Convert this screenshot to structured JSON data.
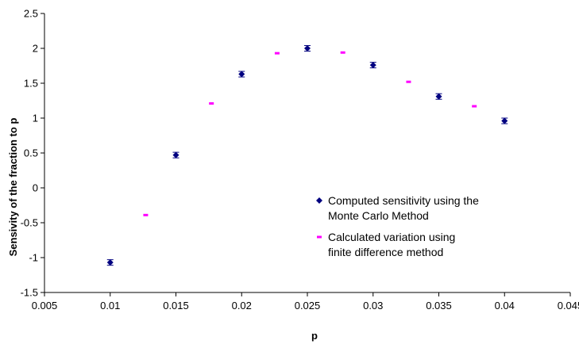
{
  "chart_data": {
    "type": "scatter",
    "title": "",
    "xlabel": "p",
    "ylabel": "Sensivity of the fraction to p",
    "xlim": [
      0.005,
      0.045
    ],
    "ylim": [
      -1.5,
      2.5
    ],
    "x_ticks": [
      "0.005",
      "0.01",
      "0.015",
      "0.02",
      "0.025",
      "0.03",
      "0.035",
      "0.04",
      "0.045"
    ],
    "y_ticks": [
      "2.5",
      "2",
      "1.5",
      "1",
      "0.5",
      "0",
      "-0.5",
      "-1",
      "-1.5"
    ],
    "grid": false,
    "legend_position": "bottom-right",
    "series": [
      {
        "name": "Computed sensitivity using the Monte Carlo Method",
        "legend_lines": [
          "Computed sensitivity using the",
          "Monte Carlo Method"
        ],
        "marker": "diamond",
        "color": "#000080",
        "error": 0.04,
        "x": [
          0.01,
          0.015,
          0.02,
          0.025,
          0.03,
          0.035,
          0.04
        ],
        "y": [
          -1.07,
          0.47,
          1.63,
          2.0,
          1.76,
          1.31,
          0.96
        ]
      },
      {
        "name": "Calculated variation using finite difference method",
        "legend_lines": [
          "Calculated variation using",
          "finite difference method"
        ],
        "marker": "dash",
        "color": "#ff00ff",
        "x": [
          0.0127,
          0.0177,
          0.0227,
          0.0277,
          0.0327,
          0.0377
        ],
        "y": [
          -0.39,
          1.21,
          1.93,
          1.94,
          1.52,
          1.17
        ]
      }
    ]
  }
}
